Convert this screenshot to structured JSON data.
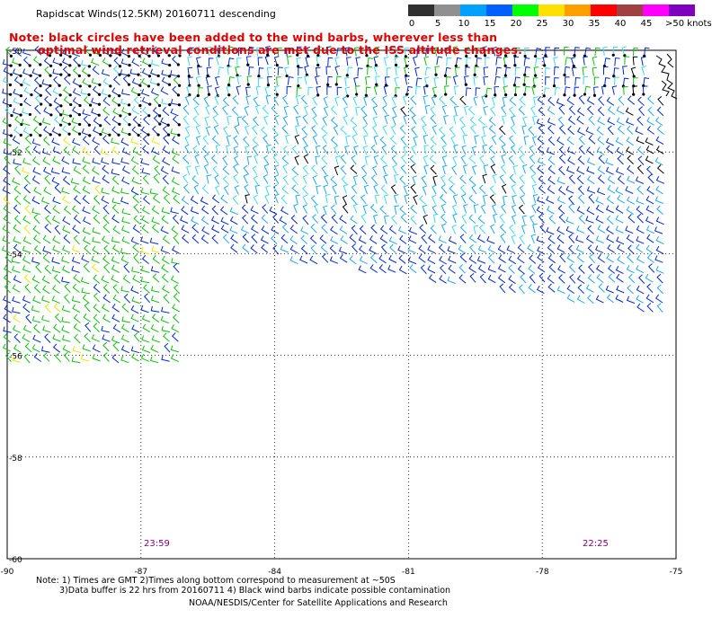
{
  "title": "Rapidscat Winds(12.5KM) 20160711 descending",
  "note": {
    "line1": "Note: black circles have been added to the wind barbs, wherever less than",
    "line2": "optimal wind retrieval conditions are met due to the ISS altitude changes."
  },
  "legend": {
    "labels": [
      "0",
      "5",
      "10",
      "15",
      "20",
      "25",
      "30",
      "35",
      "40",
      "45",
      ">50 knots"
    ],
    "colors": [
      "#303030",
      "#909090",
      "#00a0ff",
      "#0060ff",
      "#00ff00",
      "#ffe000",
      "#ffa000",
      "#ff0000",
      "#a04040",
      "#ff00ff",
      "#8000c0"
    ]
  },
  "axes": {
    "lon_ticks": [
      "-90",
      "-87",
      "-84",
      "-81",
      "-78",
      "-75"
    ],
    "lat_ticks": [
      "-50",
      "-52",
      "-54",
      "-56",
      "-58",
      "-60"
    ]
  },
  "times": {
    "left": "23:59",
    "right": "22:25"
  },
  "footer": {
    "line1": "Note: 1) Times are GMT 2)Times along bottom correspond to measurement at ~50S",
    "line2": "3)Data buffer is 22 hrs from 20160711 4) Black wind barbs indicate possible contamination",
    "line3": "NOAA/NESDIS/Center for Satellite Applications and Research"
  },
  "barb_colors": {
    "light_blue": "#20a8f0",
    "cyan": "#40d8f0",
    "blue": "#0028d0",
    "green": "#10c010",
    "black": "#000000",
    "yellow": "#e8e800"
  }
}
